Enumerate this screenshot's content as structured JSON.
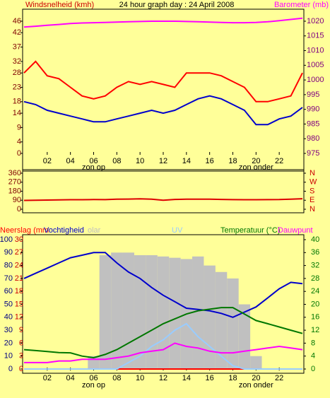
{
  "chart_data": [
    {
      "type": "line",
      "title": "24 hour graph day : 24 April 2008",
      "ylabel": "Windsnelheid (kmh)",
      "y2label": "Barometer (mb)",
      "x": [
        0,
        1,
        2,
        3,
        4,
        5,
        6,
        7,
        8,
        9,
        10,
        11,
        12,
        13,
        14,
        15,
        16,
        17,
        18,
        19,
        20,
        21,
        22,
        23,
        24
      ],
      "xlim": [
        0,
        24
      ],
      "xticks": [
        {
          "value": 2,
          "label": "02"
        },
        {
          "value": 4,
          "label": "04"
        },
        {
          "value": 6,
          "label": "06"
        },
        {
          "value": 8,
          "label": "08"
        },
        10,
        12,
        14,
        16,
        18,
        20,
        22
      ],
      "annotations": [
        {
          "text": "zon op",
          "x": 6
        },
        {
          "text": "zon onder",
          "x": 20
        }
      ],
      "ylim": [
        0,
        46
      ],
      "yticks": [
        0,
        4,
        9,
        14,
        18,
        23,
        28,
        32,
        37,
        42,
        46
      ],
      "y2lim": [
        975,
        1020
      ],
      "y2ticks": [
        975,
        980,
        985,
        990,
        995,
        1000,
        1005,
        1010,
        1015,
        1020
      ],
      "series": [
        {
          "color": "#ff0000",
          "values": [
            28,
            32,
            27,
            26,
            23,
            20,
            19,
            20,
            23,
            25,
            24,
            25,
            24,
            23,
            28,
            28,
            28,
            27,
            25,
            23,
            18,
            18,
            19,
            20,
            28
          ]
        },
        {
          "color": "#0000cc",
          "values": [
            18,
            17,
            15,
            14,
            13,
            12,
            11,
            11,
            12,
            13,
            14,
            15,
            14,
            15,
            17,
            19,
            20,
            19,
            17,
            15,
            10,
            10,
            12,
            13,
            16
          ]
        },
        {
          "color": "#ff00ff",
          "axis": "y2",
          "values": [
            1018,
            1018.3,
            1018.6,
            1018.9,
            1019.2,
            1019.4,
            1019.5,
            1019.6,
            1019.7,
            1019.8,
            1019.9,
            1020,
            1020,
            1020,
            1019.9,
            1019.8,
            1019.7,
            1019.6,
            1019.5,
            1019.5,
            1019.6,
            1019.8,
            1020.2,
            1020.6,
            1021
          ]
        }
      ]
    },
    {
      "type": "line",
      "x": [
        0,
        1,
        2,
        3,
        4,
        5,
        6,
        7,
        8,
        9,
        10,
        11,
        12,
        13,
        14,
        15,
        16,
        17,
        18,
        19,
        20,
        21,
        22,
        23,
        24
      ],
      "xlim": [
        0,
        24
      ],
      "ylim": [
        0,
        360
      ],
      "yticks": [
        0,
        90,
        180,
        270,
        360
      ],
      "y2lim": [
        0,
        360
      ],
      "y2ticks": [
        {
          "value": 0,
          "label": "N"
        },
        {
          "value": 90,
          "label": "E"
        },
        {
          "value": 180,
          "label": "S"
        },
        {
          "value": 270,
          "label": "W"
        },
        {
          "value": 360,
          "label": "N"
        }
      ],
      "series": [
        {
          "color": "#dd0000",
          "values": [
            88,
            90,
            92,
            93,
            95,
            95,
            97,
            96,
            100,
            102,
            104,
            100,
            90,
            98,
            100,
            100,
            100,
            98,
            96,
            95,
            95,
            96,
            97,
            100,
            105
          ]
        }
      ]
    },
    {
      "type": "line",
      "x": [
        0,
        1,
        2,
        3,
        4,
        5,
        6,
        7,
        8,
        9,
        10,
        11,
        12,
        13,
        14,
        15,
        16,
        17,
        18,
        19,
        20,
        21,
        22,
        23,
        24
      ],
      "xlim": [
        0,
        24
      ],
      "xticks": [
        {
          "value": 2,
          "label": "02"
        },
        {
          "value": 4,
          "label": "04"
        },
        {
          "value": 6,
          "label": "06"
        },
        {
          "value": 8,
          "label": "08"
        },
        10,
        12,
        14,
        16,
        18,
        20,
        22
      ],
      "annotations": [
        {
          "text": "zon op",
          "x": 6
        },
        {
          "text": "zon onder",
          "x": 20
        }
      ],
      "ylim": [
        0,
        100
      ],
      "yticks": [
        0,
        10,
        20,
        30,
        40,
        50,
        60,
        70,
        80,
        90,
        100
      ],
      "y3lim": [
        0,
        30
      ],
      "y3ticks": [
        0,
        3,
        6,
        9,
        12,
        15,
        18,
        21,
        24,
        27,
        30
      ],
      "y2lim": [
        0,
        40
      ],
      "y2ticks": [
        0,
        4,
        8,
        12,
        16,
        20,
        24,
        28,
        32,
        36,
        40
      ],
      "series": [
        {
          "name": "olar",
          "color": "#c0c0c0",
          "style": "bars",
          "values": [
            0,
            0,
            0,
            0,
            0,
            0,
            10,
            88,
            90,
            90,
            88,
            88,
            87,
            86,
            85,
            87,
            80,
            75,
            70,
            50,
            10,
            0,
            0,
            0,
            0
          ]
        },
        {
          "name": "Neerslag (mm",
          "color": "#ff0000",
          "axis": "y3",
          "values": [
            0,
            0,
            0,
            0,
            0,
            0,
            0,
            0,
            0,
            0,
            0,
            0,
            0,
            0,
            0,
            0,
            0,
            0,
            0,
            0,
            0,
            0,
            0,
            0,
            0
          ]
        },
        {
          "name": "UV",
          "color": "#99ccff",
          "axis": "y2",
          "values": [
            0,
            0,
            0,
            0,
            0,
            0,
            0,
            0,
            0,
            2,
            4,
            7,
            9,
            12,
            14,
            10,
            7,
            4,
            1,
            0,
            0,
            0,
            0,
            0,
            0
          ]
        },
        {
          "name": "Vochtigheid",
          "color": "#0000cc",
          "values": [
            70,
            74,
            78,
            82,
            86,
            88,
            90,
            90,
            82,
            75,
            70,
            63,
            57,
            52,
            47,
            46,
            45,
            43,
            40,
            44,
            48,
            55,
            62,
            67,
            66
          ]
        },
        {
          "name": "Temperatuur (°C)",
          "color": "#007700",
          "axis": "y2",
          "values": [
            6,
            5.7,
            5.4,
            5.1,
            5,
            4,
            3.5,
            4.5,
            6,
            8,
            10,
            12,
            14,
            15.5,
            17,
            18,
            18.5,
            19,
            19,
            17,
            15,
            14,
            13,
            12,
            11
          ]
        },
        {
          "name": "Dauwpunt",
          "color": "#ff00ff",
          "axis": "y2",
          "values": [
            2,
            2,
            2,
            2.5,
            2.5,
            3,
            3,
            3,
            3.5,
            4,
            5,
            5.5,
            6,
            8,
            7,
            6.5,
            5.5,
            5,
            5,
            5.5,
            6,
            6.5,
            7,
            6.5,
            6
          ]
        }
      ]
    }
  ]
}
